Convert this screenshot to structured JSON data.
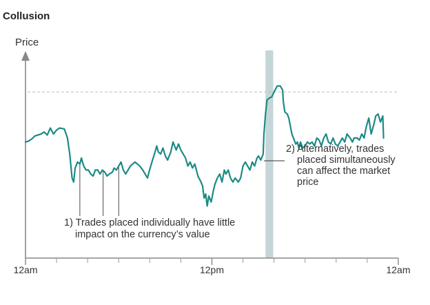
{
  "chart_data": {
    "type": "line",
    "title": "Collusion",
    "ylabel": "Price",
    "xlabel": "",
    "x_tick_labels": [
      {
        "at": 0,
        "label": "12am"
      },
      {
        "at": 12,
        "label": "12pm"
      },
      {
        "at": 24,
        "label": "12am"
      }
    ],
    "xlim": [
      0,
      24
    ],
    "ylim": [
      0,
      100
    ],
    "minor_ticks": [
      2,
      4,
      6,
      8,
      10,
      12,
      14,
      16,
      18,
      20,
      22
    ],
    "reference_line": 83,
    "highlight_band": [
      15.45,
      15.95
    ],
    "line_color": "#1b8a84",
    "band_color": "#c5d6d8",
    "series": [
      {
        "values": [
          [
            0.0,
            58.0
          ],
          [
            0.2,
            58.5
          ],
          [
            0.4,
            59.5
          ],
          [
            0.6,
            61
          ],
          [
            0.8,
            61.5
          ],
          [
            1.0,
            62
          ],
          [
            1.2,
            63
          ],
          [
            1.4,
            61.5
          ],
          [
            1.6,
            65
          ],
          [
            1.8,
            62
          ],
          [
            2.0,
            64
          ],
          [
            2.2,
            65
          ],
          [
            2.5,
            64.5
          ],
          [
            2.7,
            60
          ],
          [
            2.85,
            52
          ],
          [
            3.0,
            40
          ],
          [
            3.1,
            38
          ],
          [
            3.2,
            45
          ],
          [
            3.35,
            48
          ],
          [
            3.5,
            47
          ],
          [
            3.6,
            50
          ],
          [
            3.75,
            46
          ],
          [
            3.9,
            44
          ],
          [
            4.05,
            44
          ],
          [
            4.2,
            42
          ],
          [
            4.35,
            41
          ],
          [
            4.5,
            44
          ],
          [
            4.65,
            44
          ],
          [
            4.8,
            42
          ],
          [
            4.95,
            44
          ],
          [
            5.1,
            43
          ],
          [
            5.25,
            41
          ],
          [
            5.4,
            42
          ],
          [
            5.6,
            43
          ],
          [
            5.7,
            45
          ],
          [
            5.85,
            44
          ],
          [
            6.0,
            46
          ],
          [
            6.15,
            48
          ],
          [
            6.3,
            44
          ],
          [
            6.45,
            42
          ],
          [
            6.6,
            44
          ],
          [
            6.75,
            46
          ],
          [
            6.9,
            47
          ],
          [
            7.05,
            48
          ],
          [
            7.2,
            47
          ],
          [
            7.35,
            46
          ],
          [
            7.55,
            44
          ],
          [
            7.7,
            42
          ],
          [
            7.85,
            40
          ],
          [
            7.95,
            43
          ],
          [
            8.1,
            47
          ],
          [
            8.3,
            52
          ],
          [
            8.45,
            56
          ],
          [
            8.55,
            53
          ],
          [
            8.7,
            52
          ],
          [
            8.85,
            55
          ],
          [
            9.0,
            51
          ],
          [
            9.15,
            49
          ],
          [
            9.35,
            53
          ],
          [
            9.5,
            58
          ],
          [
            9.6,
            56
          ],
          [
            9.7,
            54
          ],
          [
            9.85,
            57
          ],
          [
            10.0,
            54
          ],
          [
            10.15,
            52
          ],
          [
            10.3,
            50
          ],
          [
            10.45,
            46
          ],
          [
            10.6,
            48
          ],
          [
            10.75,
            45
          ],
          [
            10.9,
            47
          ],
          [
            11.0,
            44
          ],
          [
            11.1,
            41
          ],
          [
            11.3,
            38
          ],
          [
            11.4,
            36
          ],
          [
            11.5,
            30
          ],
          [
            11.6,
            32
          ],
          [
            11.7,
            26
          ],
          [
            11.8,
            31
          ],
          [
            11.95,
            28
          ],
          [
            12.1,
            34
          ],
          [
            12.2,
            37
          ],
          [
            12.35,
            40
          ],
          [
            12.5,
            42
          ],
          [
            12.65,
            38
          ],
          [
            12.8,
            44
          ],
          [
            12.9,
            42
          ],
          [
            13.05,
            44
          ],
          [
            13.2,
            40
          ],
          [
            13.35,
            38
          ],
          [
            13.5,
            40
          ],
          [
            13.7,
            38
          ],
          [
            13.85,
            40
          ],
          [
            14.0,
            46
          ],
          [
            14.15,
            48
          ],
          [
            14.3,
            46
          ],
          [
            14.45,
            44
          ],
          [
            14.6,
            48
          ],
          [
            14.75,
            46
          ],
          [
            14.9,
            50
          ],
          [
            15.0,
            51
          ],
          [
            15.15,
            49
          ],
          [
            15.3,
            52
          ],
          [
            15.35,
            62
          ],
          [
            15.45,
            72
          ],
          [
            15.55,
            79
          ],
          [
            15.7,
            80
          ],
          [
            15.85,
            80.5
          ],
          [
            16.0,
            83
          ],
          [
            16.2,
            86
          ],
          [
            16.4,
            86
          ],
          [
            16.55,
            84
          ],
          [
            16.6,
            78
          ],
          [
            16.7,
            73
          ],
          [
            16.85,
            72
          ],
          [
            16.95,
            70
          ],
          [
            17.05,
            66
          ],
          [
            17.15,
            62
          ],
          [
            17.25,
            60
          ],
          [
            17.4,
            57
          ],
          [
            17.5,
            58
          ],
          [
            17.6,
            55
          ],
          [
            17.7,
            58
          ],
          [
            17.85,
            55
          ],
          [
            18.0,
            56
          ],
          [
            18.15,
            58
          ],
          [
            18.3,
            57
          ],
          [
            18.45,
            58
          ],
          [
            18.6,
            56
          ],
          [
            18.75,
            60
          ],
          [
            18.9,
            59
          ],
          [
            19.05,
            56
          ],
          [
            19.2,
            60
          ],
          [
            19.35,
            62
          ],
          [
            19.5,
            58
          ],
          [
            19.65,
            57
          ],
          [
            19.8,
            60
          ],
          [
            19.95,
            57
          ],
          [
            20.1,
            56
          ],
          [
            20.25,
            58
          ],
          [
            20.4,
            60
          ],
          [
            20.55,
            58
          ],
          [
            20.7,
            62
          ],
          [
            20.9,
            60
          ],
          [
            21.05,
            58
          ],
          [
            21.15,
            60
          ],
          [
            21.35,
            60
          ],
          [
            21.5,
            59
          ],
          [
            21.65,
            62
          ],
          [
            21.8,
            60
          ],
          [
            21.95,
            66
          ],
          [
            22.1,
            70
          ],
          [
            22.25,
            62
          ],
          [
            22.4,
            66
          ],
          [
            22.55,
            71
          ],
          [
            22.7,
            72
          ],
          [
            22.85,
            68
          ],
          [
            23.0,
            71
          ],
          [
            23.05,
            60
          ]
        ]
      }
    ],
    "annotations": {
      "note1": {
        "lines": [
          "1) Trades placed individually have little",
          "impact on the currency’s value"
        ],
        "pointer_x": [
          3.5,
          5.0,
          6.0
        ]
      },
      "note2": {
        "lines": [
          "2) Alternatively, trades",
          "placed simultaneously",
          "can affect the market",
          "price"
        ],
        "pointer_at": [
          15.35,
          50
        ]
      }
    }
  }
}
